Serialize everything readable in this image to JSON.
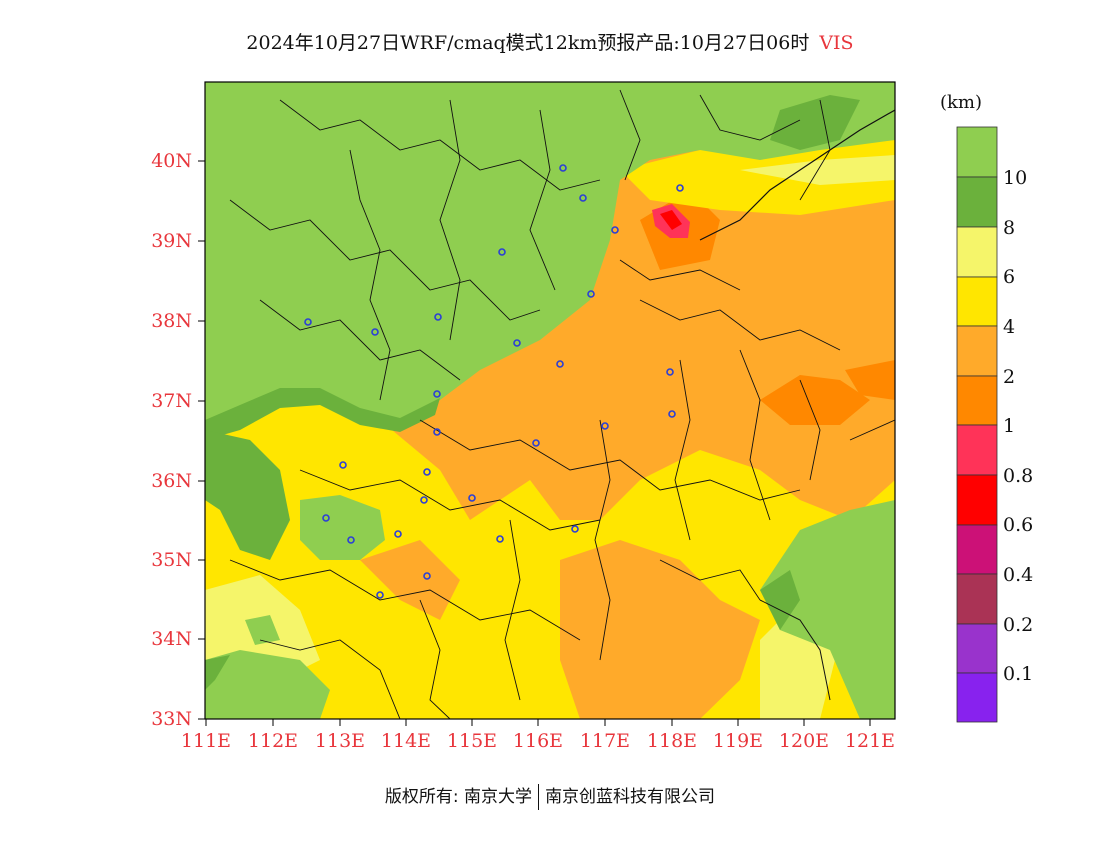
{
  "title": {
    "main": "2024年10月27日WRF/cmaq模式12km预报产品:10月27日06时",
    "variable": "VIS",
    "variable_color": "#e8363c"
  },
  "map": {
    "lat_labels": [
      "40N",
      "39N",
      "38N",
      "37N",
      "36N",
      "35N",
      "34N",
      "33N"
    ],
    "lon_labels": [
      "111E",
      "112E",
      "113E",
      "114E",
      "115E",
      "116E",
      "117E",
      "118E",
      "119E",
      "120E",
      "121E"
    ],
    "label_color": "#e8363c",
    "city_marker_color": "#2b3fd6"
  },
  "colorbar": {
    "unit": "(km)",
    "labels": [
      "10",
      "8",
      "6",
      "4",
      "2",
      "1",
      "0.8",
      "0.6",
      "0.4",
      "0.2",
      "0.1"
    ],
    "colors": [
      "#8fce50",
      "#6bb13c",
      "#f5f56a",
      "#ffe600",
      "#ffaa2a",
      "#ff8800",
      "#ff3358",
      "#ff0000",
      "#cc1177",
      "#aa3355",
      "#9933cc",
      "#8822ee"
    ]
  },
  "footer": {
    "owner": "版权所有: 南京大学",
    "company": "南京创蓝科技有限公司"
  }
}
